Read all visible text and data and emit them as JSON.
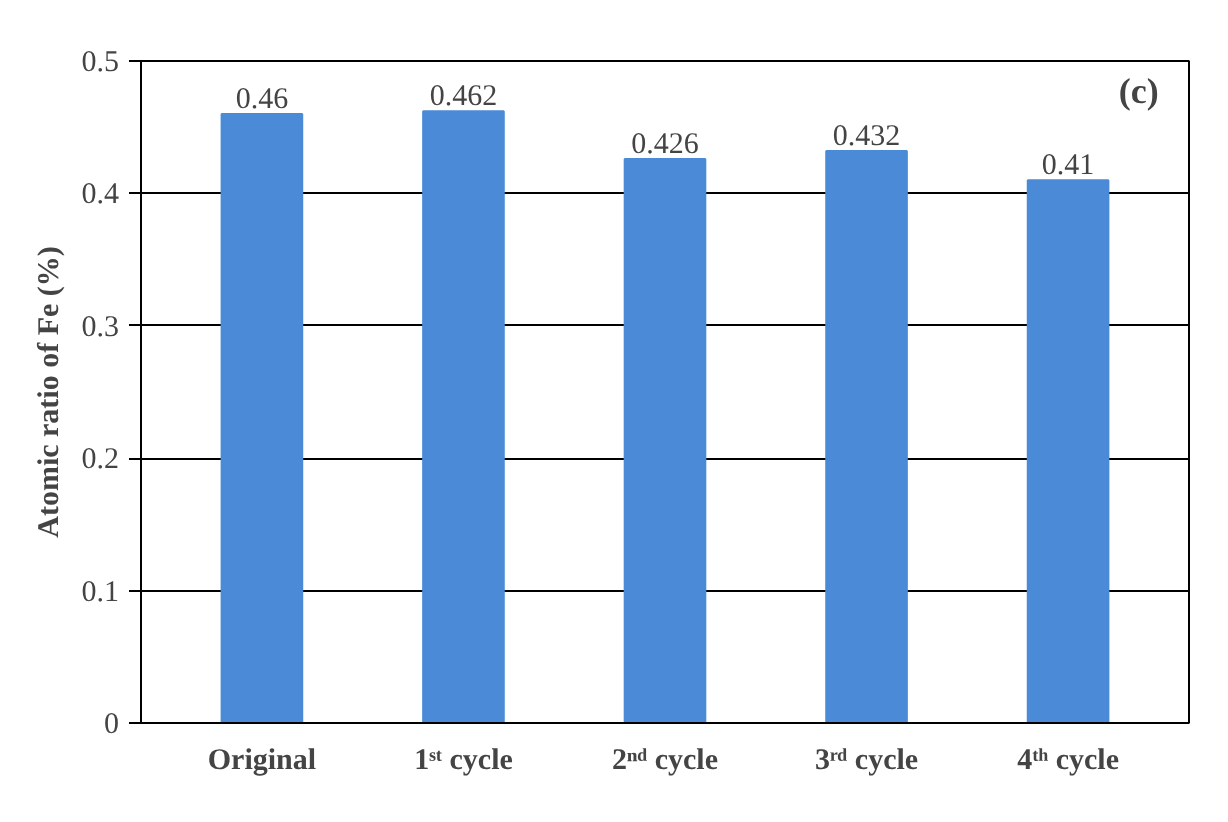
{
  "chart_data": {
    "type": "bar",
    "ylabel": "Atomic ratio of Fe (%)",
    "categories": [
      "Original",
      "1ˢᵗ cycle",
      "2ⁿᵈ cycle",
      "3ʳᵈ cycle",
      "4ᵗʰ cycle"
    ],
    "values": [
      0.46,
      0.462,
      0.426,
      0.432,
      0.41
    ],
    "color": "#4a8ad6",
    "ylim": [
      0,
      0.5
    ],
    "yticks": [
      0,
      0.1,
      0.2,
      0.3,
      0.4,
      0.5
    ],
    "grid": "y",
    "data_labels": true,
    "annotations": [
      "(c)"
    ]
  }
}
